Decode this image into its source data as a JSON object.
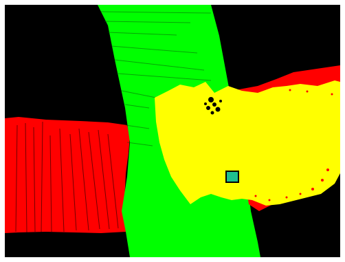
{
  "scene": {
    "background_color": "#000000",
    "frame_color": "#ffffff",
    "layers": [
      {
        "name": "left-red-region",
        "color": "#ff0000"
      },
      {
        "name": "right-red-region",
        "color": "#ff0000"
      },
      {
        "name": "green-band",
        "color": "#00ff00"
      },
      {
        "name": "yellow-region",
        "color": "#ffff00"
      }
    ],
    "marker": {
      "name": "agent-marker",
      "fill": "#1fbf8f",
      "stroke": "#000000"
    }
  }
}
